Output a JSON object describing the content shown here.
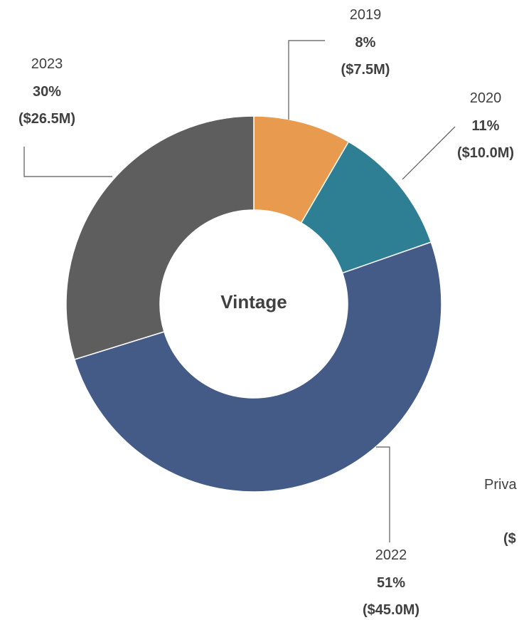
{
  "chart_data": {
    "type": "pie",
    "center_label": "Vintage",
    "slices": [
      {
        "label": "2019",
        "percent": 8,
        "percent_label": "8%",
        "value": 7.5,
        "value_label": "($7.5M)",
        "color": "#E89B4E"
      },
      {
        "label": "2020",
        "percent": 11,
        "percent_label": "11%",
        "value": 10.0,
        "value_label": "($10.0M)",
        "color": "#2E7F93"
      },
      {
        "label": "2022",
        "percent": 51,
        "percent_label": "51%",
        "value": 45.0,
        "value_label": "($45.0M)",
        "color": "#435B86"
      },
      {
        "label": "2023",
        "percent": 30,
        "percent_label": "30%",
        "value": 26.5,
        "value_label": "($26.5M)",
        "color": "#5E5E5E"
      }
    ],
    "clipped_labels": [
      {
        "text": "Priva"
      },
      {
        "text": "($"
      }
    ]
  }
}
